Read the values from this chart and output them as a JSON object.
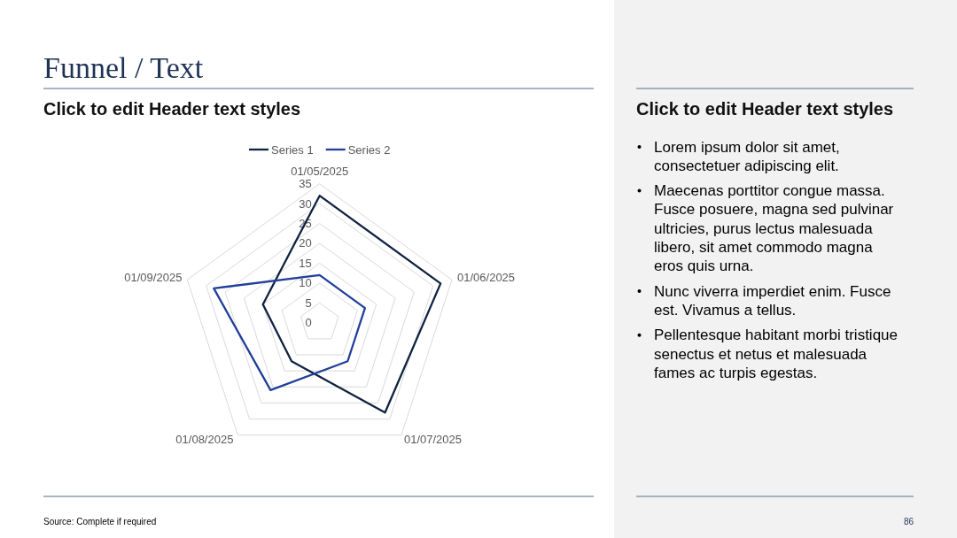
{
  "chart_data": [
    {
      "type": "radar",
      "title": "Funnel / Text",
      "subtitle": "Click to edit Header text styles",
      "categories": [
        "01/05/2025",
        "01/06/2025",
        "01/07/2025",
        "01/08/2025",
        "01/09/2025"
      ],
      "series": [
        {
          "name": "Series 1",
          "color": "#0f2341",
          "values": [
            32,
            32,
            28,
            12,
            15
          ]
        },
        {
          "name": "Series 2",
          "color": "#213f99",
          "values": [
            12,
            12,
            12,
            21,
            28
          ]
        }
      ],
      "ylim": [
        0,
        35
      ],
      "yticks": [
        0,
        5,
        10,
        15,
        20,
        25,
        30,
        35
      ],
      "grid": true,
      "legend": "top",
      "annotations": [
        "Source: Complete if required",
        "86"
      ]
    },
    {
      "type": "other",
      "title": "Click to edit Header text styles",
      "annotations": [
        "Lorem ipsum dolor sit amet, consectetuer adipiscing elit.",
        "Maecenas porttitor congue massa. Fusce posuere, magna sed pulvinar ultricies, purus lectus malesuada libero, sit amet commodo magna eros quis urna.",
        "Nunc viverra imperdiet enim. Fusce est. Vivamus a tellus.",
        "Pellentesque habitant morbi tristique senectus et netus et malesuada fames ac turpis egestas."
      ]
    }
  ]
}
